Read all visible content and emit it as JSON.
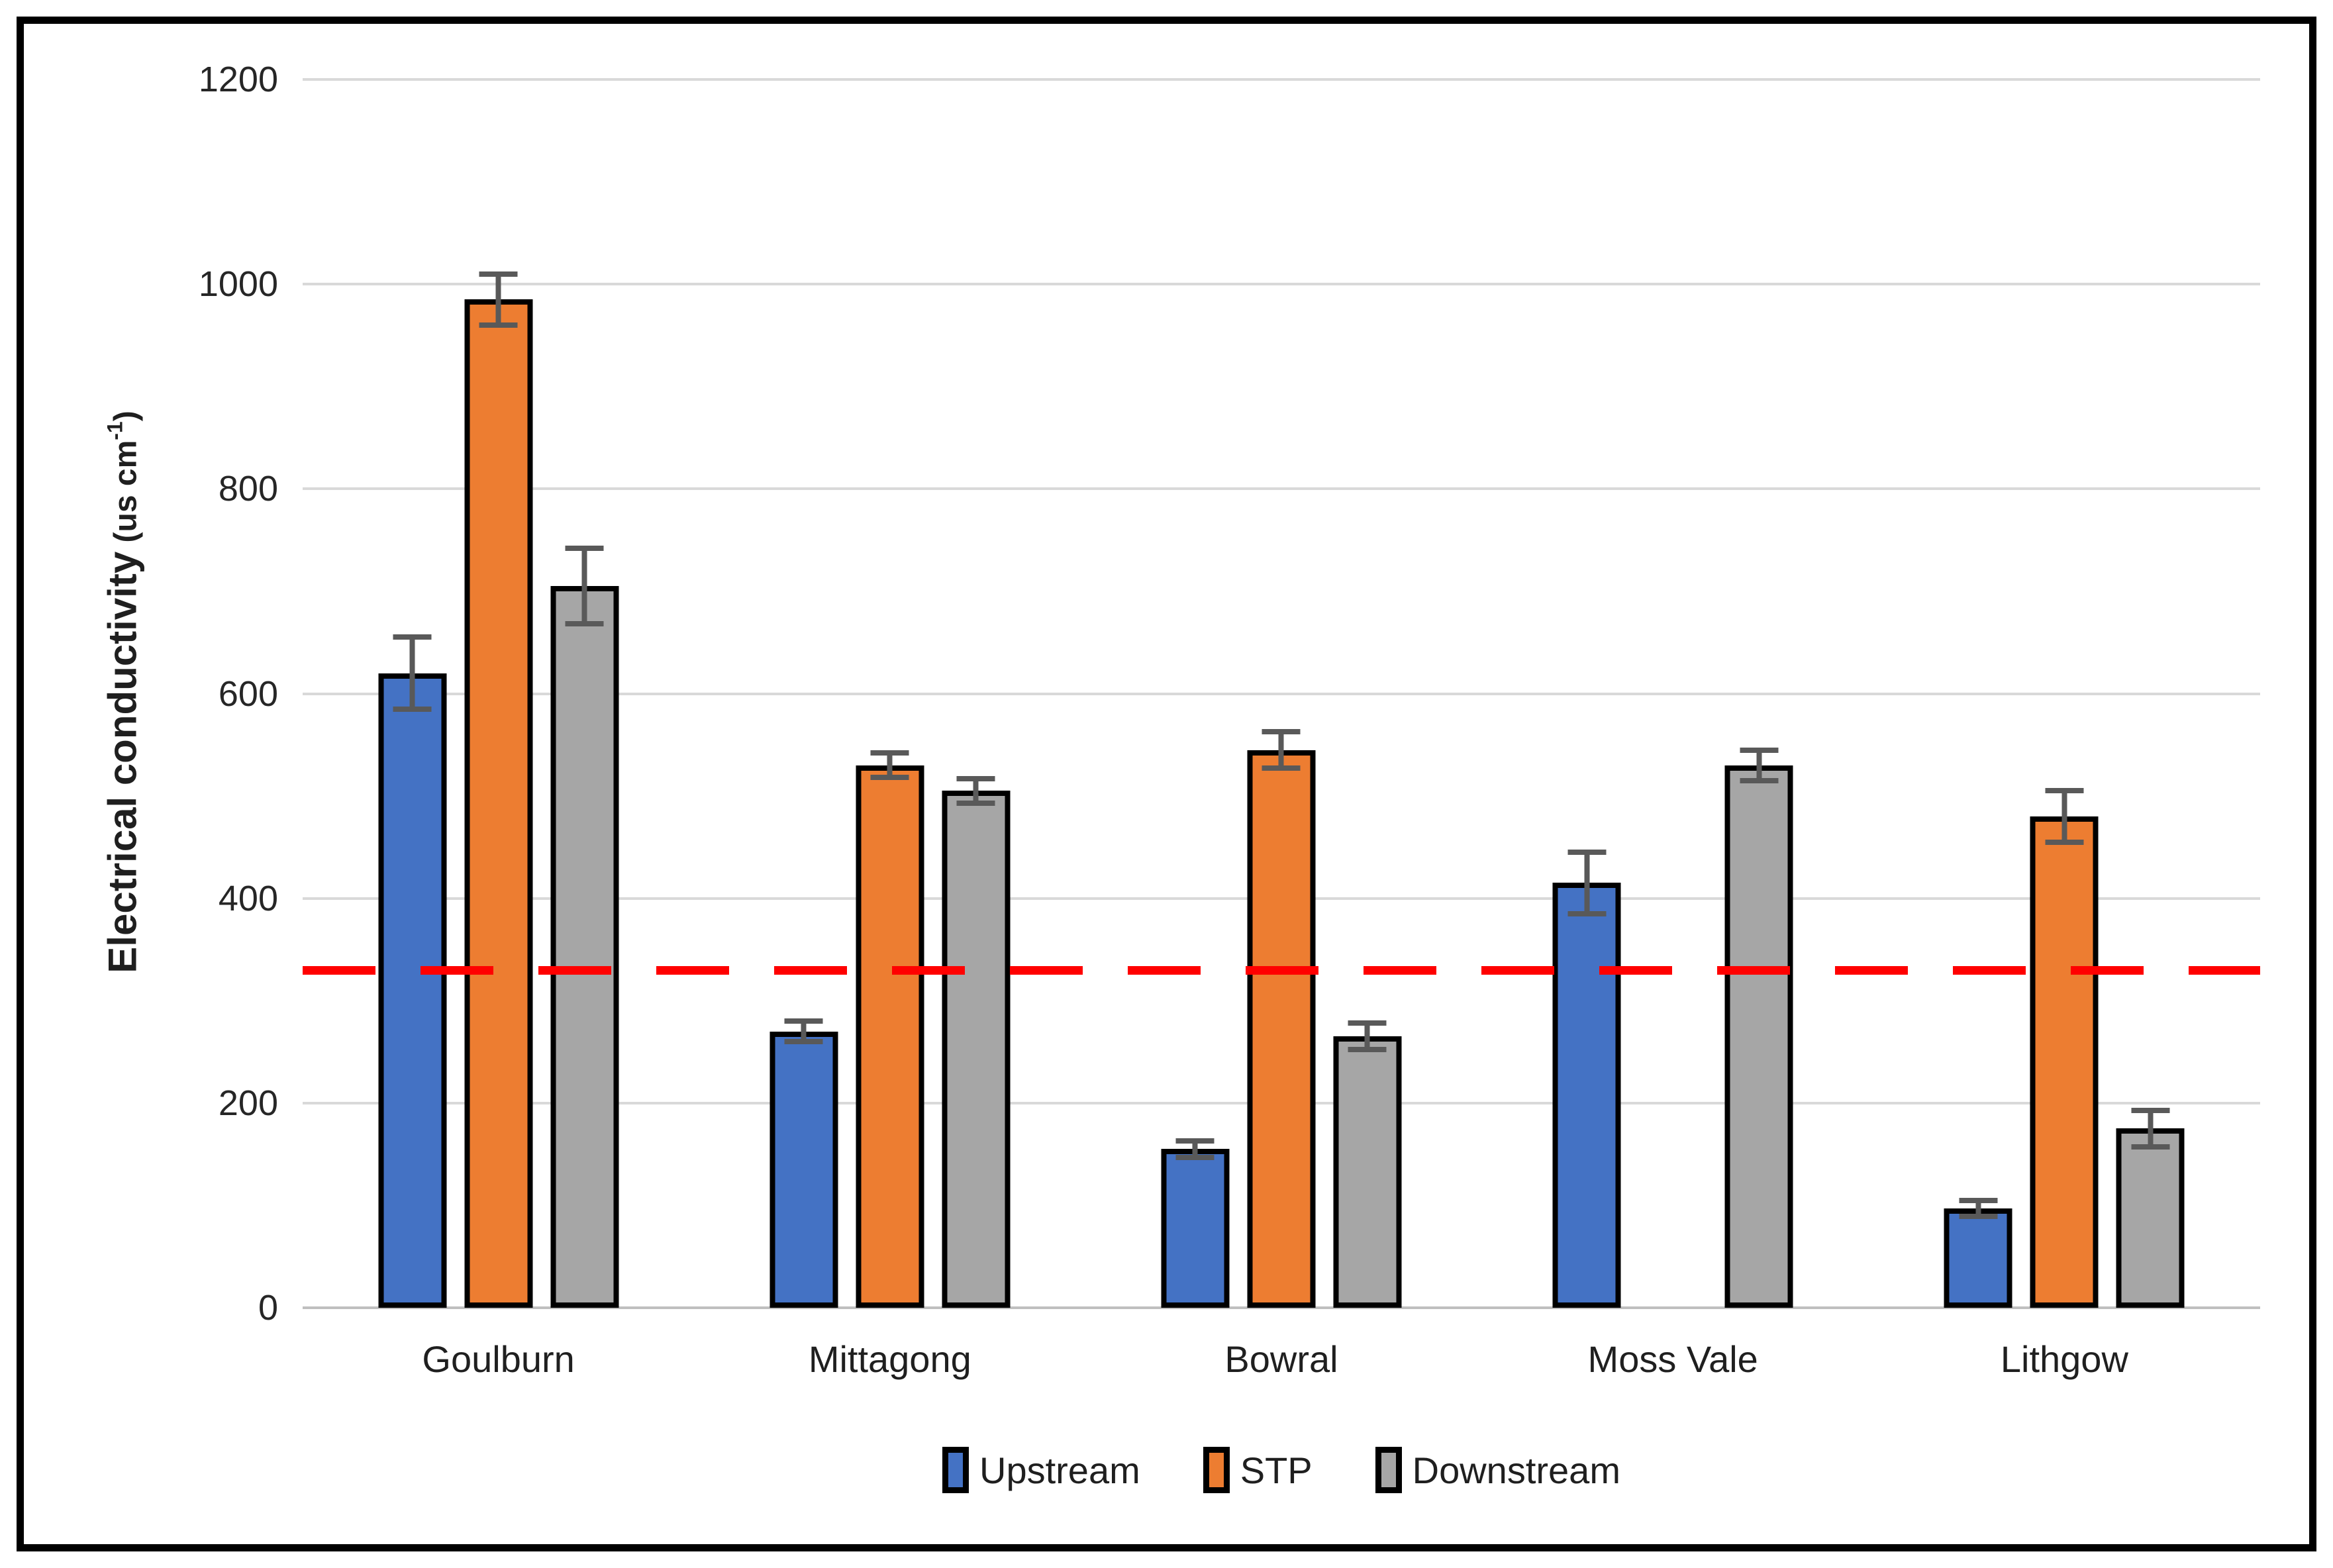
{
  "chart_data": {
    "type": "bar",
    "title": "",
    "ylabel": "Electrical conductivity (us cm-1)",
    "ylabel_parts": {
      "main": "Electrical conductivity",
      "unit_prefix": " (us cm",
      "exponent": "-1",
      "suffix": ")"
    },
    "xlabel": "",
    "categories": [
      "Goulburn",
      "Mittagong",
      "Bowral",
      "Moss Vale",
      "Lithgow"
    ],
    "series": [
      {
        "name": "Upstream",
        "color": "#4472C4",
        "values": [
          620,
          270,
          155,
          415,
          97
        ],
        "errors": [
          35,
          10,
          8,
          30,
          8
        ]
      },
      {
        "name": "STP",
        "color": "#ED7D31",
        "values": [
          985,
          530,
          545,
          null,
          480
        ],
        "errors": [
          25,
          12,
          18,
          null,
          25
        ]
      },
      {
        "name": "Downstream",
        "color": "#A6A6A6",
        "values": [
          705,
          505,
          265,
          530,
          175
        ],
        "errors": [
          37,
          12,
          13,
          15,
          18
        ]
      }
    ],
    "y_axis": {
      "min": 0,
      "max": 1200,
      "tick_step": 200,
      "ticks": [
        1200,
        1000,
        800,
        600,
        400,
        200,
        0
      ]
    },
    "reference_line": {
      "value": 330,
      "color": "#FF0000",
      "style": "dashed"
    },
    "legend": {
      "position": "bottom",
      "entries": [
        "Upstream",
        "STP",
        "Downstream"
      ]
    },
    "grid": true,
    "colors": {
      "gridline": "#D9D9D9",
      "axis_line": "#BFBFBF",
      "error_bar": "#595959",
      "bar_border": "#000000",
      "frame_border": "#000000",
      "background": "#FFFFFF"
    }
  }
}
